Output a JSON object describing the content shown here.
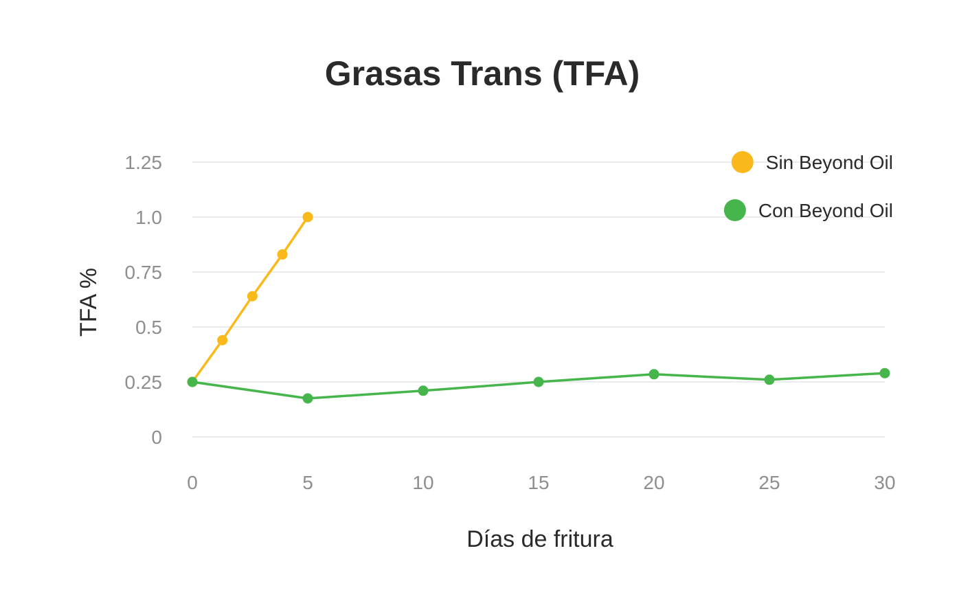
{
  "chart_data": {
    "type": "line",
    "title": "Grasas Trans (TFA)",
    "xlabel": "Días de fritura",
    "ylabel": "TFA %",
    "xlim": [
      0,
      30
    ],
    "ylim": [
      0,
      1.25
    ],
    "x_ticks": [
      "0",
      "5",
      "10",
      "15",
      "20",
      "25",
      "30"
    ],
    "y_ticks": [
      "0",
      "0.25",
      "0.5",
      "0.75",
      "1.0",
      "1.25"
    ],
    "grid": true,
    "legend_position": "top-right",
    "series": [
      {
        "name": "Sin Beyond Oil",
        "color": "#F9B91A",
        "x": [
          0,
          1.3,
          2.6,
          3.9,
          5
        ],
        "y": [
          0.25,
          0.44,
          0.64,
          0.83,
          1.0
        ]
      },
      {
        "name": "Con Beyond Oil",
        "color": "#46B64C",
        "x": [
          0,
          5,
          10,
          15,
          20,
          25,
          30
        ],
        "y": [
          0.25,
          0.175,
          0.21,
          0.25,
          0.285,
          0.26,
          0.29
        ]
      }
    ]
  }
}
